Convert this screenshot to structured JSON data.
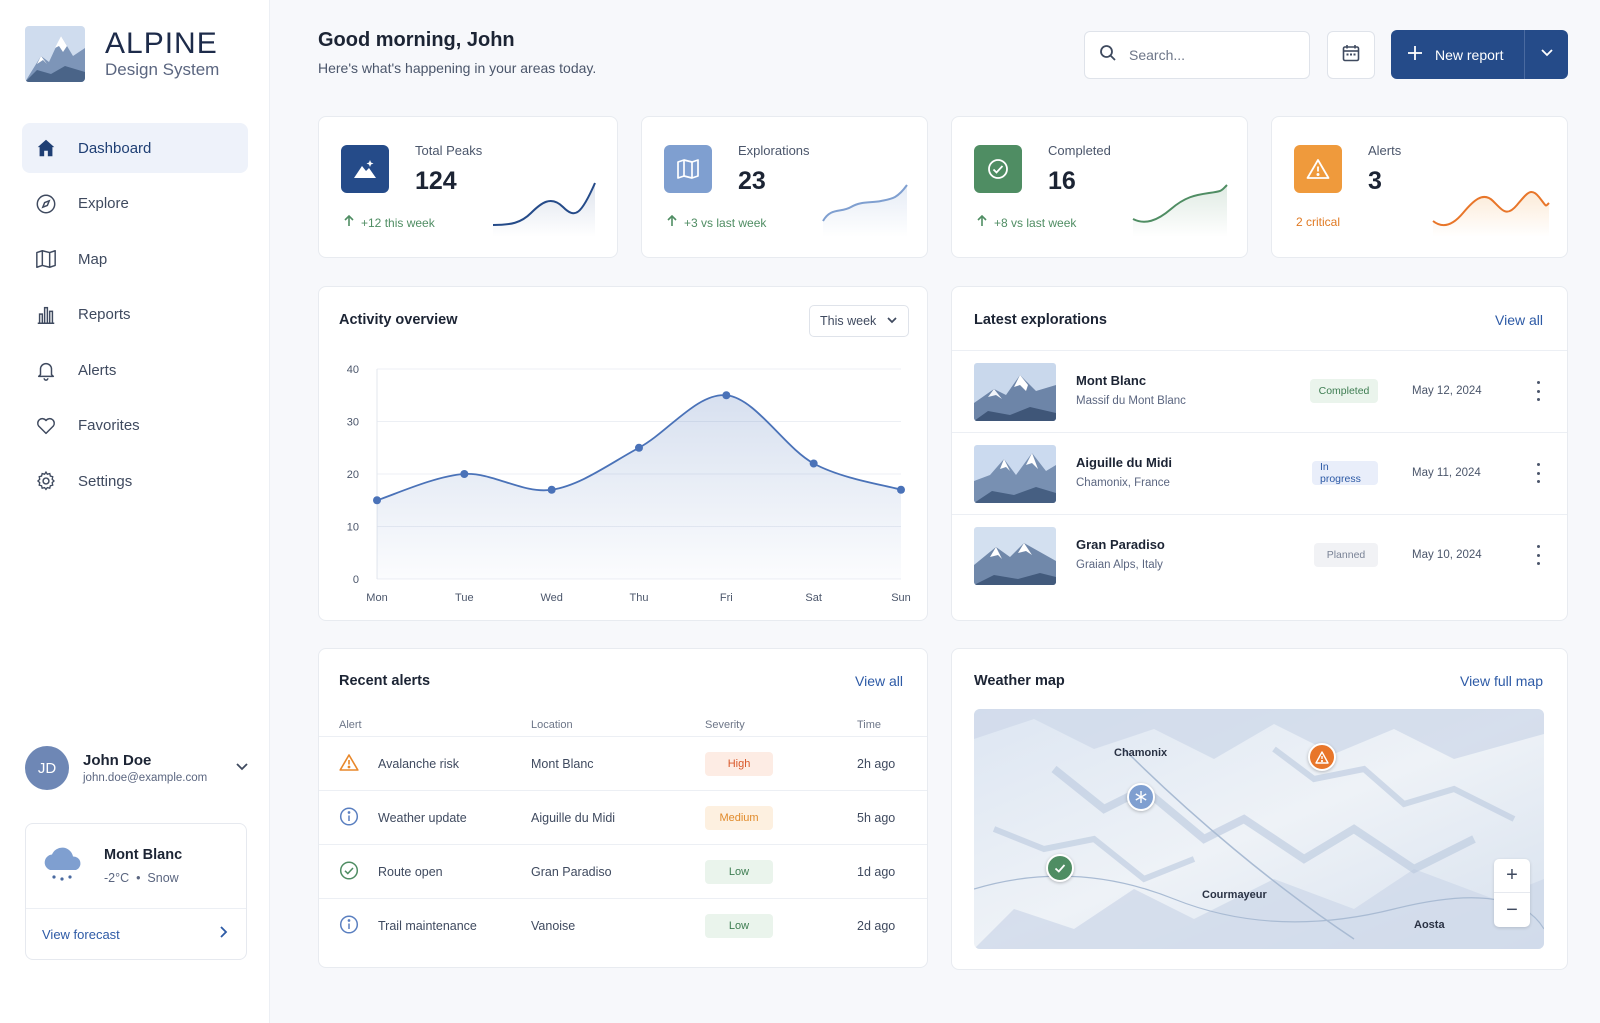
{
  "brand": {
    "title": "ALPINE",
    "subtitle": "Design System"
  },
  "nav": [
    {
      "label": "Dashboard",
      "icon": "home-icon",
      "active": true
    },
    {
      "label": "Explore",
      "icon": "compass-icon"
    },
    {
      "label": "Map",
      "icon": "map-icon"
    },
    {
      "label": "Reports",
      "icon": "bar-chart-icon"
    },
    {
      "label": "Alerts",
      "icon": "bell-icon"
    },
    {
      "label": "Favorites",
      "icon": "heart-icon"
    },
    {
      "label": "Settings",
      "icon": "gear-icon"
    }
  ],
  "user": {
    "initials": "JD",
    "name": "John Doe",
    "email": "john.doe@example.com"
  },
  "weather": {
    "location": "Mont Blanc",
    "temp": "-2°C",
    "condition": "Snow",
    "link": "View forecast"
  },
  "header": {
    "greeting": "Good morning, John",
    "subtitle": "Here's what's happening in your areas today.",
    "search_placeholder": "Search...",
    "new_report": "New report"
  },
  "stats": [
    {
      "label": "Total Peaks",
      "value": "124",
      "delta": "+12 this week",
      "color": "#254b89",
      "trend": "up"
    },
    {
      "label": "Explorations",
      "value": "23",
      "delta": "+3 vs last week",
      "color": "#7f9fd0",
      "trend": "up"
    },
    {
      "label": "Completed",
      "value": "16",
      "delta": "+8 vs last week",
      "color": "#4f8d63",
      "trend": "up"
    },
    {
      "label": "Alerts",
      "value": "3",
      "delta": "2 critical",
      "color": "#ef9a3c",
      "trend": "none"
    }
  ],
  "activity": {
    "title": "Activity overview",
    "range": "This week"
  },
  "chart_data": {
    "type": "area",
    "categories": [
      "Mon",
      "Tue",
      "Wed",
      "Thu",
      "Fri",
      "Sat",
      "Sun"
    ],
    "values": [
      15,
      20,
      17,
      25,
      35,
      22,
      17
    ],
    "yticks": [
      0,
      10,
      20,
      30,
      40
    ],
    "ylim": [
      0,
      40
    ],
    "grid": true,
    "color": "#4a72b8"
  },
  "explorations": {
    "title": "Latest explorations",
    "link": "View all",
    "items": [
      {
        "name": "Mont Blanc",
        "location": "Massif du Mont Blanc",
        "status": "Completed",
        "date": "May 12, 2024"
      },
      {
        "name": "Aiguille du Midi",
        "location": "Chamonix, France",
        "status": "In progress",
        "date": "May 11, 2024"
      },
      {
        "name": "Gran Paradiso",
        "location": "Graian Alps, Italy",
        "status": "Planned",
        "date": "May 10, 2024"
      }
    ]
  },
  "alerts": {
    "title": "Recent alerts",
    "link": "View all",
    "headers": [
      "Alert",
      "Location",
      "Severity",
      "Time"
    ],
    "rows": [
      {
        "alert": "Avalanche risk",
        "location": "Mont Blanc",
        "severity": "High",
        "time": "2h ago",
        "icon": "warning-icon"
      },
      {
        "alert": "Weather update",
        "location": "Aiguille du Midi",
        "severity": "Medium",
        "time": "5h ago",
        "icon": "info-icon"
      },
      {
        "alert": "Route open",
        "location": "Gran Paradiso",
        "severity": "Low",
        "time": "1d ago",
        "icon": "check-circle-icon"
      },
      {
        "alert": "Trail maintenance",
        "location": "Vanoise",
        "severity": "Low",
        "time": "2d ago",
        "icon": "info-icon"
      }
    ]
  },
  "weather_map": {
    "title": "Weather map",
    "link": "View full map",
    "labels": [
      "Chamonix",
      "Courmayeur",
      "Aosta"
    ]
  }
}
